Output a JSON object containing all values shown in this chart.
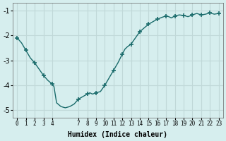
{
  "xlabel": "Humidex (Indice chaleur)",
  "ylabel": "",
  "bg_color": "#d6eeee",
  "grid_color": "#c0d8d8",
  "line_color": "#1a6b6b",
  "marker_color": "#1a6b6b",
  "xlim": [
    -0.5,
    23.5
  ],
  "ylim": [
    -5.3,
    -0.7
  ],
  "yticks": [
    -5,
    -4,
    -3,
    -2,
    -1
  ],
  "xticks": [
    0,
    1,
    2,
    3,
    4,
    7,
    8,
    9,
    10,
    11,
    12,
    13,
    14,
    15,
    16,
    17,
    18,
    19,
    20,
    21,
    22,
    23
  ],
  "x": [
    0,
    0.5,
    1,
    1.5,
    2,
    2.5,
    3,
    3.5,
    4,
    4.2,
    4.5,
    5,
    5.5,
    6,
    6.5,
    7,
    7.5,
    8,
    8.3,
    8.6,
    9,
    9.5,
    10,
    10.5,
    11,
    11.5,
    12,
    12.3,
    12.6,
    13,
    13.5,
    14,
    14.5,
    15,
    15.5,
    16,
    16.5,
    17,
    17.3,
    17.6,
    18,
    18.5,
    19,
    19.5,
    20,
    20.5,
    21,
    21.5,
    22,
    22.5,
    23
  ],
  "y": [
    -2.1,
    -2.3,
    -2.6,
    -2.9,
    -3.1,
    -3.35,
    -3.6,
    -3.8,
    -3.95,
    -4.05,
    -4.7,
    -4.85,
    -4.9,
    -4.85,
    -4.75,
    -4.55,
    -4.45,
    -4.35,
    -4.3,
    -4.35,
    -4.3,
    -4.25,
    -4.0,
    -3.7,
    -3.4,
    -3.1,
    -2.75,
    -2.55,
    -2.45,
    -2.35,
    -2.1,
    -1.85,
    -1.7,
    -1.55,
    -1.45,
    -1.35,
    -1.28,
    -1.22,
    -1.25,
    -1.3,
    -1.22,
    -1.18,
    -1.2,
    -1.25,
    -1.18,
    -1.12,
    -1.18,
    -1.15,
    -1.1,
    -1.15,
    -1.12
  ],
  "markers_x": [
    0,
    1,
    2,
    3,
    4,
    7,
    8,
    9,
    10,
    11,
    12,
    13,
    14,
    15,
    16,
    17,
    18,
    19,
    20,
    21,
    22,
    23
  ],
  "markers_y": [
    -2.1,
    -2.6,
    -3.1,
    -3.6,
    -3.95,
    -4.55,
    -4.35,
    -4.3,
    -4.0,
    -3.4,
    -2.75,
    -2.35,
    -1.85,
    -1.55,
    -1.35,
    -1.22,
    -1.22,
    -1.2,
    -1.18,
    -1.18,
    -1.1,
    -1.12
  ]
}
